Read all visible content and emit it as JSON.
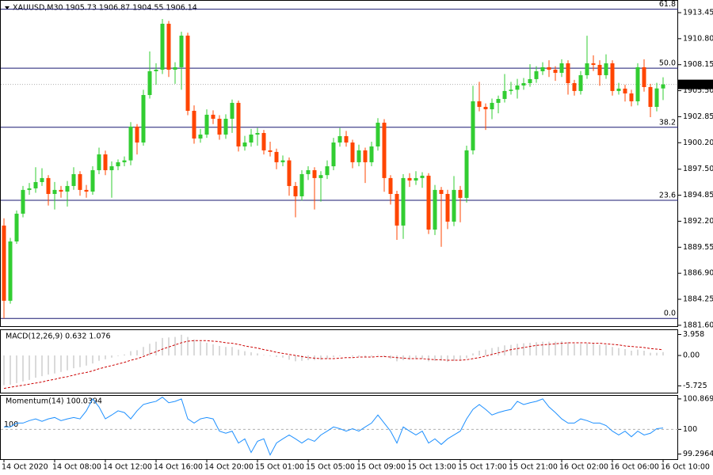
{
  "chart_data": [
    {
      "type": "candlestick",
      "title": "XAUUSD,M30  1905.73 1906.87 1904.55 1906.14",
      "up_color": "#32cd32",
      "down_color": "#ff4500",
      "fib_color": "#191970",
      "ylim": [
        1881.51,
        1914.74
      ],
      "yticks": [
        1913.45,
        {
          "value": 1910.8,
          "label": "1910.80"
        },
        1908.15,
        {
          "value": 1905.5,
          "label": "1905.50"
        },
        1902.85,
        {
          "value": 1900.2,
          "label": "1900.20"
        },
        {
          "value": 1897.5,
          "label": "1897.50"
        },
        1894.85,
        {
          "value": 1892.2,
          "label": "1892.20"
        },
        1889.55,
        {
          "value": 1886.9,
          "label": "1886.90"
        },
        1884.25,
        {
          "value": 1881.6,
          "label": "1881.60"
        }
      ],
      "last_price": 1906.14,
      "fib_levels": [
        {
          "value": 1913.8,
          "label": "61.8"
        },
        {
          "value": 1907.79,
          "label": "50.0"
        },
        {
          "value": 1901.77,
          "label": "38.2"
        },
        {
          "value": 1894.33,
          "label": "23.6"
        },
        {
          "value": 1882.3,
          "label": "0.0"
        }
      ],
      "open": [
        1891.76,
        1884.1,
        1890.14,
        1892.97,
        1895.39,
        1895.55,
        1896.19,
        1896.6,
        1894.98,
        1895.39,
        1895.22,
        1895.79,
        1897.0,
        1895.39,
        1895.22,
        1897.4,
        1899.01,
        1897.4,
        1897.8,
        1898.21,
        1898.4,
        1901.84,
        1900.22,
        1905.06,
        1907.48,
        1907.64,
        1912.32,
        1907.64,
        1907.89,
        1911.11,
        1903.45,
        1900.63,
        1901.03,
        1903.05,
        1902.64,
        1901.03,
        1902.64,
        1904.26,
        1899.82,
        1900.22,
        1901.03,
        1901.19,
        1899.42,
        1899.26,
        1898.21,
        1898.4,
        1895.79,
        1894.74,
        1897.0,
        1897.4,
        1896.6,
        1896.9,
        1897.8,
        1900.22,
        1900.87,
        1900.22,
        1898.21,
        1899.42,
        1898.21,
        1899.82,
        1902.24,
        1896.6,
        1894.98,
        1891.76,
        1896.6,
        1896.35,
        1896.6,
        1896.84,
        1891.35,
        1895.39,
        1894.98,
        1892.16,
        1895.39,
        1894.58,
        1899.42,
        1904.42,
        1903.85,
        1903.61,
        1904.26,
        1904.66,
        1905.47,
        1905.6,
        1906.03,
        1906.27,
        1906.68,
        1907.48,
        1907.89,
        1907.64,
        1907.32,
        1908.29,
        1906.27,
        1905.47,
        1907.08,
        1908.29,
        1908.13,
        1907.08,
        1908.29,
        1905.47,
        1905.71,
        1905.22,
        1904.42,
        1907.89,
        1905.87,
        1903.85,
        1905.73
      ],
      "high": [
        1892.5,
        1890.5,
        1893.3,
        1895.8,
        1896.1,
        1897.7,
        1897.6,
        1896.9,
        1896.2,
        1895.8,
        1896.3,
        1897.7,
        1897.3,
        1895.9,
        1897.8,
        1899.7,
        1899.4,
        1898.3,
        1898.5,
        1898.8,
        1902.3,
        1902.1,
        1905.6,
        1909.5,
        1908.3,
        1912.8,
        1912.6,
        1908.4,
        1911.5,
        1911.4,
        1904.0,
        1901.6,
        1903.6,
        1903.5,
        1903.0,
        1903.1,
        1904.6,
        1904.5,
        1900.9,
        1901.6,
        1901.7,
        1901.5,
        1900.3,
        1899.6,
        1898.9,
        1898.7,
        1896.2,
        1897.4,
        1897.8,
        1897.7,
        1897.3,
        1898.4,
        1900.7,
        1901.7,
        1901.4,
        1900.5,
        1900.0,
        1899.7,
        1900.3,
        1902.7,
        1902.6,
        1896.9,
        1895.3,
        1897.0,
        1897.1,
        1897.3,
        1897.2,
        1897.1,
        1895.9,
        1895.7,
        1895.4,
        1896.8,
        1895.8,
        1899.9,
        1906.0,
        1906.4,
        1904.2,
        1904.7,
        1905.0,
        1907.2,
        1906.4,
        1906.7,
        1906.8,
        1908.2,
        1908.0,
        1908.4,
        1908.6,
        1908.0,
        1908.7,
        1908.6,
        1906.6,
        1907.5,
        1911.1,
        1909.1,
        1908.6,
        1909.2,
        1908.6,
        1906.3,
        1906.1,
        1905.6,
        1908.3,
        1908.7,
        1906.2,
        1906.3,
        1906.87
      ],
      "low": [
        1882.3,
        1883.8,
        1889.9,
        1892.6,
        1894.9,
        1895.1,
        1895.8,
        1893.8,
        1893.4,
        1894.6,
        1893.7,
        1895.4,
        1894.8,
        1894.6,
        1894.9,
        1897.0,
        1896.9,
        1894.6,
        1897.4,
        1897.8,
        1897.9,
        1899.0,
        1899.9,
        1904.7,
        1906.1,
        1907.2,
        1906.9,
        1906.2,
        1905.6,
        1903.0,
        1900.1,
        1900.2,
        1900.7,
        1902.1,
        1900.5,
        1900.6,
        1901.2,
        1899.3,
        1899.4,
        1899.8,
        1899.9,
        1899.0,
        1898.8,
        1897.5,
        1897.8,
        1894.8,
        1892.6,
        1894.3,
        1896.4,
        1893.4,
        1894.2,
        1896.5,
        1897.4,
        1899.8,
        1899.8,
        1897.6,
        1897.8,
        1896.1,
        1897.8,
        1899.4,
        1895.2,
        1893.9,
        1890.3,
        1890.4,
        1895.7,
        1895.9,
        1895.6,
        1890.9,
        1890.8,
        1889.6,
        1891.4,
        1891.7,
        1892.1,
        1894.1,
        1899.0,
        1903.4,
        1901.5,
        1902.6,
        1903.2,
        1904.3,
        1905.1,
        1904.7,
        1905.6,
        1905.9,
        1906.3,
        1907.1,
        1906.9,
        1906.5,
        1906.9,
        1905.1,
        1905.0,
        1905.1,
        1906.7,
        1907.5,
        1906.0,
        1906.7,
        1905.0,
        1905.1,
        1904.4,
        1903.9,
        1904.0,
        1905.4,
        1902.8,
        1903.4,
        1904.55
      ],
      "close": [
        1884.1,
        1890.14,
        1892.97,
        1895.39,
        1895.55,
        1896.19,
        1896.6,
        1894.98,
        1895.39,
        1895.22,
        1895.79,
        1897.0,
        1895.39,
        1895.22,
        1897.4,
        1899.01,
        1897.4,
        1897.8,
        1898.21,
        1898.4,
        1901.84,
        1900.22,
        1905.06,
        1907.48,
        1907.64,
        1912.32,
        1907.64,
        1907.89,
        1911.11,
        1903.45,
        1900.63,
        1901.03,
        1903.05,
        1902.64,
        1901.03,
        1902.64,
        1904.26,
        1899.82,
        1900.22,
        1901.03,
        1901.19,
        1899.42,
        1899.26,
        1898.21,
        1898.4,
        1895.79,
        1894.74,
        1897.0,
        1897.4,
        1896.6,
        1896.9,
        1897.8,
        1900.22,
        1900.87,
        1900.22,
        1898.21,
        1899.42,
        1898.21,
        1899.82,
        1902.24,
        1896.6,
        1894.98,
        1891.76,
        1896.6,
        1896.35,
        1896.6,
        1896.84,
        1891.35,
        1895.39,
        1894.98,
        1892.16,
        1895.39,
        1894.58,
        1899.42,
        1904.42,
        1903.85,
        1903.61,
        1904.26,
        1904.66,
        1905.47,
        1905.6,
        1906.03,
        1906.27,
        1906.68,
        1907.48,
        1907.89,
        1907.64,
        1907.32,
        1908.29,
        1906.27,
        1905.47,
        1907.08,
        1908.29,
        1908.13,
        1907.08,
        1908.29,
        1905.47,
        1905.71,
        1905.22,
        1904.42,
        1907.89,
        1905.87,
        1903.85,
        1905.73,
        1906.14
      ]
    },
    {
      "type": "macd",
      "title": "MACD(12,26,9) 0.632 1.076",
      "ylim": [
        -7.01,
        4.93
      ],
      "yticks": [
        3.958,
        {
          "value": 0,
          "label": "0.00"
        },
        -5.725
      ],
      "series": [
        {
          "style": "histogram",
          "color": "#b4b4b4",
          "values": [
            -5.6,
            -5.5,
            -5.2,
            -4.9,
            -4.6,
            -4.2,
            -3.9,
            -3.6,
            -3.4,
            -3.1,
            -2.8,
            -2.4,
            -2.2,
            -1.9,
            -1.5,
            -1.0,
            -0.7,
            -0.4,
            -0.1,
            0.2,
            0.8,
            1.0,
            1.6,
            2.2,
            2.6,
            3.3,
            3.4,
            3.5,
            3.9,
            3.5,
            3.0,
            2.6,
            2.4,
            2.1,
            1.8,
            1.6,
            1.6,
            1.1,
            0.8,
            0.6,
            0.4,
            0.1,
            -0.1,
            -0.3,
            -0.4,
            -0.8,
            -1.1,
            -1.0,
            -0.9,
            -0.9,
            -0.8,
            -0.6,
            -0.3,
            -0.1,
            0.0,
            -0.2,
            -0.2,
            -0.3,
            -0.2,
            0.1,
            -0.3,
            -0.6,
            -1.1,
            -0.9,
            -0.8,
            -0.7,
            -0.6,
            -1.1,
            -1.0,
            -1.0,
            -1.2,
            -1.0,
            -1.0,
            -0.5,
            0.4,
            0.9,
            1.1,
            1.4,
            1.6,
            1.9,
            2.0,
            2.2,
            2.3,
            2.4,
            2.5,
            2.6,
            2.6,
            2.6,
            2.7,
            2.5,
            2.2,
            2.2,
            2.3,
            2.2,
            2.0,
            2.0,
            1.6,
            1.4,
            1.2,
            0.9,
            1.1,
            0.9,
            0.5,
            0.5,
            0.632
          ]
        },
        {
          "style": "dashed",
          "color": "#cc0000",
          "values": [
            -6.2,
            -6.0,
            -5.8,
            -5.6,
            -5.4,
            -5.2,
            -5.0,
            -4.7,
            -4.5,
            -4.2,
            -4.0,
            -3.7,
            -3.4,
            -3.2,
            -2.9,
            -2.5,
            -2.2,
            -1.9,
            -1.6,
            -1.3,
            -0.9,
            -0.6,
            -0.2,
            0.3,
            0.7,
            1.2,
            1.6,
            2.0,
            2.4,
            2.7,
            2.8,
            2.8,
            2.8,
            2.7,
            2.6,
            2.4,
            2.3,
            2.1,
            1.8,
            1.6,
            1.4,
            1.1,
            0.9,
            0.6,
            0.4,
            0.2,
            0.0,
            -0.2,
            -0.4,
            -0.5,
            -0.6,
            -0.6,
            -0.6,
            -0.5,
            -0.4,
            -0.4,
            -0.3,
            -0.3,
            -0.3,
            -0.2,
            -0.2,
            -0.3,
            -0.4,
            -0.5,
            -0.6,
            -0.6,
            -0.6,
            -0.7,
            -0.8,
            -0.8,
            -0.9,
            -0.9,
            -0.9,
            -0.8,
            -0.6,
            -0.4,
            -0.1,
            0.2,
            0.5,
            0.8,
            1.1,
            1.3,
            1.5,
            1.7,
            1.9,
            2.0,
            2.1,
            2.2,
            2.3,
            2.4,
            2.4,
            2.4,
            2.4,
            2.3,
            2.3,
            2.2,
            2.1,
            2.0,
            1.8,
            1.7,
            1.6,
            1.5,
            1.3,
            1.2,
            1.076
          ]
        }
      ]
    },
    {
      "type": "line",
      "title": "Momentum(14) 100.0394",
      "ylim": [
        99.15,
        100.98
      ],
      "yticks": [
        100.8696,
        100,
        99.2964
      ],
      "level": 100,
      "categories": [
        "14 Oct 2020",
        null,
        null,
        null,
        null,
        null,
        null,
        null,
        "14 Oct 08:00",
        null,
        null,
        null,
        null,
        null,
        null,
        null,
        "14 Oct 12:00",
        null,
        null,
        null,
        null,
        null,
        null,
        null,
        "14 Oct 16:00",
        null,
        null,
        null,
        null,
        null,
        null,
        null,
        "14 Oct 20:00",
        null,
        null,
        null,
        null,
        null,
        null,
        null,
        "15 Oct 01:00",
        null,
        null,
        null,
        null,
        null,
        null,
        null,
        "15 Oct 05:00",
        null,
        null,
        null,
        null,
        null,
        null,
        null,
        "15 Oct 09:00",
        null,
        null,
        null,
        null,
        null,
        null,
        null,
        "15 Oct 13:00",
        null,
        null,
        null,
        null,
        null,
        null,
        null,
        "15 Oct 17:00",
        null,
        null,
        null,
        null,
        null,
        null,
        null,
        "15 Oct 21:00",
        null,
        null,
        null,
        null,
        null,
        null,
        null,
        "16 Oct 02:00",
        null,
        null,
        null,
        null,
        null,
        null,
        null,
        "16 Oct 06:00",
        null,
        null,
        null,
        null,
        null,
        null,
        null,
        "16 Oct 10:00"
      ],
      "series": [
        {
          "color": "#1e90ff",
          "values": [
            100.07,
            100.07,
            100.18,
            100.18,
            100.25,
            100.3,
            100.23,
            100.3,
            100.34,
            100.25,
            100.3,
            100.34,
            100.3,
            100.53,
            100.87,
            100.64,
            100.3,
            100.41,
            100.53,
            100.48,
            100.3,
            100.53,
            100.71,
            100.76,
            100.8,
            100.92,
            100.76,
            100.8,
            100.87,
            100.3,
            100.18,
            100.3,
            100.34,
            100.3,
            99.95,
            99.89,
            99.95,
            99.61,
            99.73,
            99.34,
            99.66,
            99.73,
            99.27,
            99.61,
            99.73,
            99.84,
            99.73,
            99.61,
            99.73,
            99.66,
            99.84,
            99.95,
            100.07,
            100.02,
            99.95,
            100.02,
            99.95,
            100.07,
            100.18,
            100.41,
            100.18,
            99.95,
            99.61,
            100.07,
            99.95,
            99.84,
            99.95,
            99.61,
            99.73,
            99.57,
            99.73,
            99.84,
            99.95,
            100.3,
            100.57,
            100.71,
            100.57,
            100.41,
            100.48,
            100.53,
            100.57,
            100.8,
            100.71,
            100.76,
            100.8,
            100.87,
            100.64,
            100.48,
            100.3,
            100.18,
            100.18,
            100.3,
            100.25,
            100.18,
            100.18,
            100.11,
            99.95,
            99.84,
            99.95,
            99.79,
            99.95,
            99.84,
            99.89,
            100.02,
            100.0394
          ]
        }
      ]
    }
  ]
}
